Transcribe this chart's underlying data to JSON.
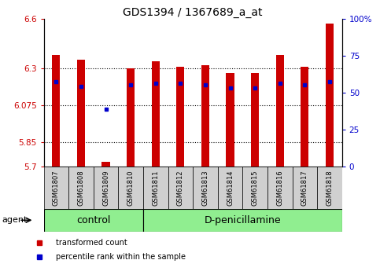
{
  "title": "GDS1394 / 1367689_a_at",
  "samples": [
    "GSM61807",
    "GSM61808",
    "GSM61809",
    "GSM61810",
    "GSM61811",
    "GSM61812",
    "GSM61813",
    "GSM61814",
    "GSM61815",
    "GSM61816",
    "GSM61817",
    "GSM61818"
  ],
  "group_boundaries": [
    0,
    4,
    12
  ],
  "group_labels": [
    "control",
    "D-penicillamine"
  ],
  "red_values": [
    6.38,
    6.35,
    5.73,
    6.3,
    6.34,
    6.31,
    6.32,
    6.27,
    6.27,
    6.38,
    6.31,
    6.57
  ],
  "blue_values": [
    6.22,
    6.19,
    6.05,
    6.2,
    6.21,
    6.21,
    6.2,
    6.18,
    6.18,
    6.21,
    6.2,
    6.22
  ],
  "ymin": 5.7,
  "ymax": 6.6,
  "yticks_left": [
    5.7,
    5.85,
    6.075,
    6.3,
    6.6
  ],
  "yticks_right": [
    0,
    25,
    50,
    75,
    100
  ],
  "hgrid_vals": [
    5.85,
    6.075,
    6.3
  ],
  "bar_color": "#cc0000",
  "dot_color": "#0000cc",
  "tick_color_left": "#cc0000",
  "tick_color_right": "#0000cc",
  "group_color": "#90ee90",
  "xtick_bg_color": "#d0d0d0",
  "legend_items": [
    {
      "label": "transformed count",
      "color": "#cc0000"
    },
    {
      "label": "percentile rank within the sample",
      "color": "#0000cc"
    }
  ],
  "agent_label": "agent",
  "title_fontsize": 10,
  "tick_fontsize": 7.5,
  "xtick_fontsize": 6,
  "group_fontsize": 9,
  "legend_fontsize": 7,
  "agent_fontsize": 8
}
